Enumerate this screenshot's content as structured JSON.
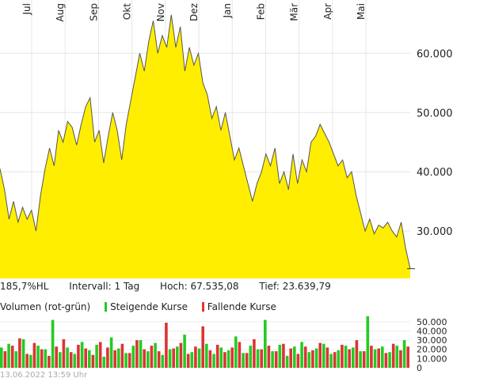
{
  "chart_data": [
    {
      "type": "area",
      "x_ticks": [
        "Jul",
        "Aug",
        "Sep",
        "Okt",
        "Nov",
        "Dez",
        "Jan",
        "Feb",
        "Mär",
        "Apr",
        "Mai"
      ],
      "y_ticks": [
        "60.000",
        "50.000",
        "40.000",
        "30.000"
      ],
      "ylim": [
        22000,
        69000
      ],
      "fill_color": "#ffee00",
      "line_color": "#555555",
      "grid": true,
      "last_value": 23639,
      "series": [
        {
          "values": [
            40500,
            37000,
            32000,
            35000,
            31500,
            34000,
            32000,
            33500,
            30000,
            36000,
            40500,
            44000,
            41000,
            47000,
            45000,
            48500,
            47500,
            44500,
            48000,
            51000,
            52500,
            45000,
            47000,
            41500,
            46000,
            50000,
            47000,
            42000,
            48000,
            52000,
            56000,
            60000,
            57000,
            62000,
            65500,
            60000,
            63000,
            61000,
            66500,
            61000,
            64500,
            57000,
            61000,
            58000,
            60000,
            55000,
            53000,
            49000,
            51000,
            47000,
            50000,
            46000,
            42000,
            44000,
            41000,
            38000,
            35000,
            38000,
            40000,
            43000,
            41000,
            44000,
            38000,
            40000,
            37000,
            43000,
            38000,
            42000,
            40000,
            45000,
            46000,
            48000,
            46500,
            45000,
            43000,
            41000,
            42000,
            39000,
            40000,
            36000,
            33000,
            30000,
            32000,
            29500,
            31000,
            30500,
            31500,
            30000,
            29000,
            31500,
            27000,
            23639
          ]
        }
      ]
    },
    {
      "type": "bar",
      "y_ticks": [
        "50.000",
        "40.000",
        "30.000",
        "20.000",
        "10.000",
        "0"
      ],
      "ylim": [
        0,
        55000
      ],
      "up_color": "#22cc22",
      "down_color": "#dd3333",
      "series": [
        {
          "name": "Steigende Kurse",
          "values": [
            22000,
            26000,
            18000,
            31000,
            14000,
            24000,
            20000,
            52000,
            17000,
            22000,
            15000,
            28000,
            19000,
            25000,
            12000,
            33000,
            21000,
            16000,
            24000,
            30000,
            18000,
            27000,
            14000,
            20000,
            23000,
            36000,
            17000,
            21000,
            26000,
            15000,
            22000,
            19000,
            34000,
            16000,
            24000,
            20000,
            52000,
            18000,
            25000,
            13000,
            23000,
            28000,
            17000,
            21000,
            26000,
            15000,
            19000,
            24000,
            22000,
            18000,
            56000,
            20000,
            23000,
            17000,
            24000,
            30000
          ]
        },
        {
          "name": "Fallende Kurse",
          "values": [
            18000,
            24000,
            32000,
            15000,
            27000,
            20000,
            13000,
            23000,
            31000,
            17000,
            25000,
            21000,
            14000,
            28000,
            22000,
            19000,
            26000,
            16000,
            30000,
            20000,
            24000,
            18000,
            49000,
            21000,
            27000,
            15000,
            23000,
            45000,
            19000,
            25000,
            17000,
            22000,
            28000,
            16000,
            31000,
            20000,
            24000,
            18000,
            26000,
            21000,
            15000,
            23000,
            19000,
            27000,
            22000,
            17000,
            25000,
            20000,
            30000,
            18000,
            24000,
            21000,
            16000,
            26000,
            19000,
            23000
          ]
        }
      ]
    }
  ],
  "info": {
    "range": "185,7%HL",
    "interval": "Intervall: 1 Tag",
    "high": "Hoch:  67.535,08",
    "low": "Tief:  23.639,79"
  },
  "volume_legend": {
    "title": "Volumen (rot-grün)",
    "up": "Steigende Kurse",
    "down": "Fallende Kurse"
  },
  "timestamp": "13.06.2022 13:59 Uhr"
}
